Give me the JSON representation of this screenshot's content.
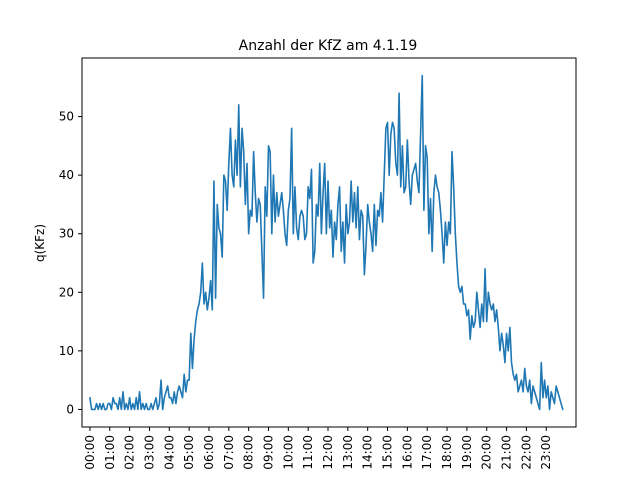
{
  "chart_data": {
    "type": "line",
    "title": "Anzahl der KfZ am 4.1.19",
    "xlabel": "",
    "ylabel": "q(KFz)",
    "x_ticks": [
      "00:00",
      "01:00",
      "02:00",
      "03:00",
      "04:00",
      "05:00",
      "06:00",
      "07:00",
      "08:00",
      "09:00",
      "10:00",
      "11:00",
      "12:00",
      "13:00",
      "14:00",
      "15:00",
      "16:00",
      "17:00",
      "18:00",
      "19:00",
      "20:00",
      "21:00",
      "22:00",
      "23:00"
    ],
    "y_ticks": [
      0,
      10,
      20,
      30,
      40,
      50
    ],
    "xlim": [
      -0.4,
      24.5
    ],
    "ylim": [
      -3,
      60
    ],
    "grid": false,
    "line_color": "#1f77b4",
    "series": [
      {
        "x_interval_minutes": 5,
        "values": [
          2,
          0,
          0,
          0,
          1,
          0,
          1,
          0,
          1,
          0,
          0,
          1,
          1,
          0,
          2,
          1,
          1,
          0,
          2,
          0,
          3,
          0,
          1,
          0,
          2,
          0,
          1,
          0,
          2,
          0,
          3,
          0,
          1,
          0,
          1,
          0,
          0,
          1,
          0,
          1,
          2,
          0,
          1,
          5,
          0,
          2,
          3,
          4,
          2,
          2,
          1,
          3,
          1,
          3,
          4,
          3,
          2,
          6,
          3,
          5,
          5,
          13,
          7,
          12,
          15,
          17,
          18,
          20,
          25,
          18,
          20,
          17,
          19,
          22,
          17,
          39,
          19,
          35,
          31,
          30,
          26,
          40,
          39,
          34,
          42,
          48,
          40,
          38,
          46,
          40,
          52,
          38,
          48,
          44,
          35,
          42,
          30,
          34,
          33,
          44,
          37,
          32,
          36,
          35,
          27,
          19,
          38,
          33,
          45,
          44,
          30,
          40,
          32,
          37,
          33,
          35,
          37,
          34,
          30,
          28,
          34,
          36,
          48,
          30,
          38,
          31,
          29,
          33,
          34,
          33,
          29,
          30,
          38,
          36,
          41,
          25,
          27,
          35,
          33,
          42,
          30,
          37,
          42,
          30,
          39,
          31,
          34,
          26,
          32,
          29,
          35,
          38,
          27,
          32,
          25,
          35,
          30,
          32,
          39,
          32,
          37,
          31,
          38,
          29,
          34,
          33,
          23,
          28,
          35,
          32,
          30,
          27,
          35,
          28,
          34,
          33,
          37,
          32,
          40,
          48,
          49,
          40,
          47,
          49,
          48,
          42,
          40,
          54,
          38,
          45,
          37,
          38,
          46,
          39,
          35,
          40,
          41,
          42,
          39,
          37,
          47,
          57,
          34,
          45,
          43,
          30,
          36,
          27,
          37,
          40,
          38,
          37,
          34,
          30,
          25,
          32,
          28,
          32,
          30,
          44,
          38,
          30,
          25,
          21,
          20,
          21,
          18,
          18,
          16,
          17,
          12,
          16,
          14,
          15,
          20,
          17,
          14,
          18,
          15,
          24,
          15,
          20,
          18,
          17,
          18,
          15,
          17,
          14,
          10,
          13,
          11,
          8,
          13,
          10,
          14,
          8,
          6,
          5,
          6,
          3,
          4,
          5,
          3,
          7,
          4,
          3,
          5,
          1,
          4,
          3,
          2,
          1,
          0,
          8,
          2,
          5,
          2,
          4,
          0,
          3,
          2,
          1,
          4,
          3,
          2,
          1,
          0
        ]
      }
    ]
  }
}
